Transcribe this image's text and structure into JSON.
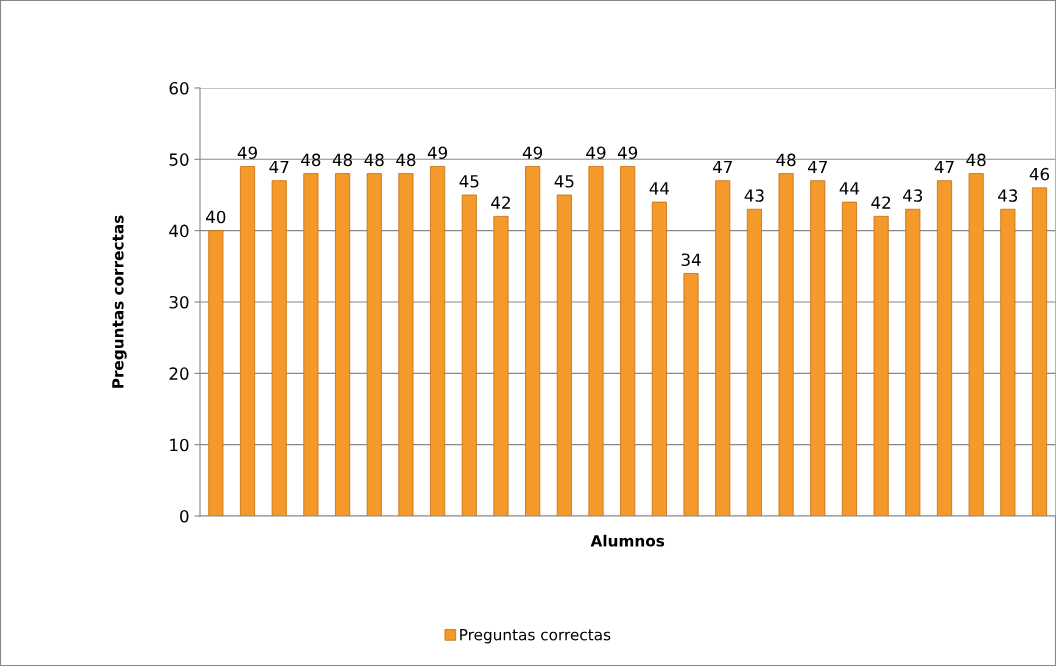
{
  "chart_data": {
    "type": "bar",
    "xlabel": "Alumnos",
    "ylabel": "Preguntas correctas",
    "categories": [
      null,
      null,
      null,
      null,
      null,
      null,
      null,
      null,
      null,
      null,
      null,
      null,
      null,
      null,
      null,
      null,
      null,
      null,
      null,
      null,
      null,
      null,
      null,
      null,
      null,
      null,
      null
    ],
    "series": [
      {
        "name": "Preguntas correctas",
        "color": "#f39a2b",
        "values": [
          40,
          49,
          47,
          48,
          48,
          48,
          48,
          49,
          45,
          42,
          49,
          45,
          49,
          49,
          44,
          34,
          47,
          43,
          48,
          47,
          44,
          42,
          43,
          47,
          48,
          43,
          46
        ]
      }
    ],
    "ylim": [
      0,
      60
    ],
    "yticks": [
      0,
      10,
      20,
      30,
      40,
      50,
      60
    ],
    "grid": "y",
    "data_labels": true,
    "legend": "bottom"
  }
}
